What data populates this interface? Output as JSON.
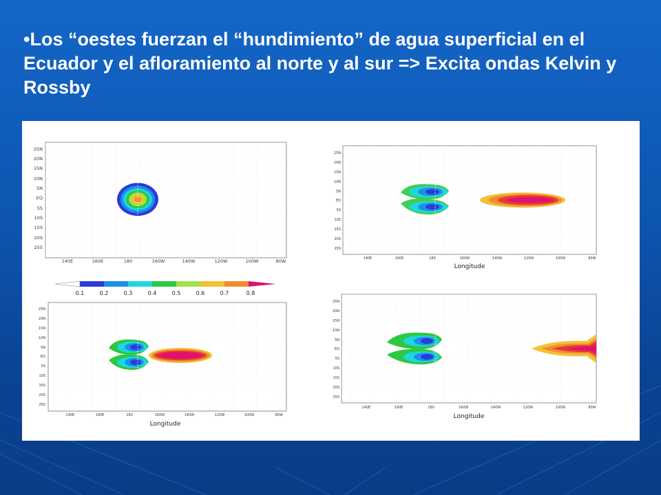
{
  "slide": {
    "bullet": "•",
    "text": "Los “oestes fuerzan el “hundimiento” de agua superficial en el Ecuador y el afloramiento al norte y al sur => Excita ondas  Kelvin y Rossby"
  },
  "figure": {
    "lat_ticks": [
      "25N",
      "20N",
      "15N",
      "10N",
      "5N",
      "EQ",
      "5S",
      "10S",
      "15S",
      "20S",
      "25S"
    ],
    "lon_ticks": [
      "140E",
      "160E",
      "180",
      "160W",
      "140W",
      "120W",
      "100W",
      "80W"
    ],
    "xlabel": "Longitude",
    "colorbar": {
      "ticks": [
        "0.1",
        "0.2",
        "0.3",
        "0.4",
        "0.5",
        "0.6",
        "0.7",
        "0.8"
      ],
      "colors": [
        "#ffffff",
        "#2d3ad8",
        "#1a90e8",
        "#1ed6e0",
        "#2ac940",
        "#a6e04a",
        "#f2c136",
        "#f08c2c",
        "#e73838",
        "#e0126e"
      ]
    },
    "panels": [
      {
        "name": "panel-initial-forcing",
        "xlabel_shown": false
      },
      {
        "name": "panel-waves-t1",
        "xlabel_shown": true
      },
      {
        "name": "panel-waves-t2",
        "xlabel_shown": true
      },
      {
        "name": "panel-waves-t3",
        "xlabel_shown": true
      }
    ]
  }
}
